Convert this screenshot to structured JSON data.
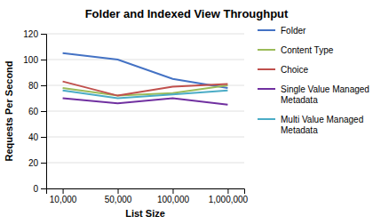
{
  "chart_data": {
    "type": "line",
    "title": "Folder and Indexed View Throughput",
    "xlabel": "List Size",
    "ylabel": "Requests Per Second",
    "categories": [
      "10,000",
      "50,000",
      "100,000",
      "1,000,000"
    ],
    "series": [
      {
        "name": "Folder",
        "color": "#4472C4",
        "values": [
          105,
          100,
          85,
          78
        ]
      },
      {
        "name": "Content Type",
        "color": "#9BBB59",
        "values": [
          78,
          72,
          74,
          80
        ]
      },
      {
        "name": "Choice",
        "color": "#C0504D",
        "values": [
          83,
          72,
          79,
          81
        ]
      },
      {
        "name": "Single Value Managed\nMetadata",
        "color": "#7030A0",
        "values": [
          70,
          66,
          70,
          65
        ]
      },
      {
        "name": "Multi Value Managed\nMetadata",
        "color": "#4BACC6",
        "values": [
          76,
          70,
          73,
          76
        ]
      }
    ],
    "ylim": [
      0,
      120
    ],
    "yticks": [
      0,
      20,
      40,
      60,
      80,
      100,
      120
    ],
    "grid": "y",
    "legend": "right"
  }
}
